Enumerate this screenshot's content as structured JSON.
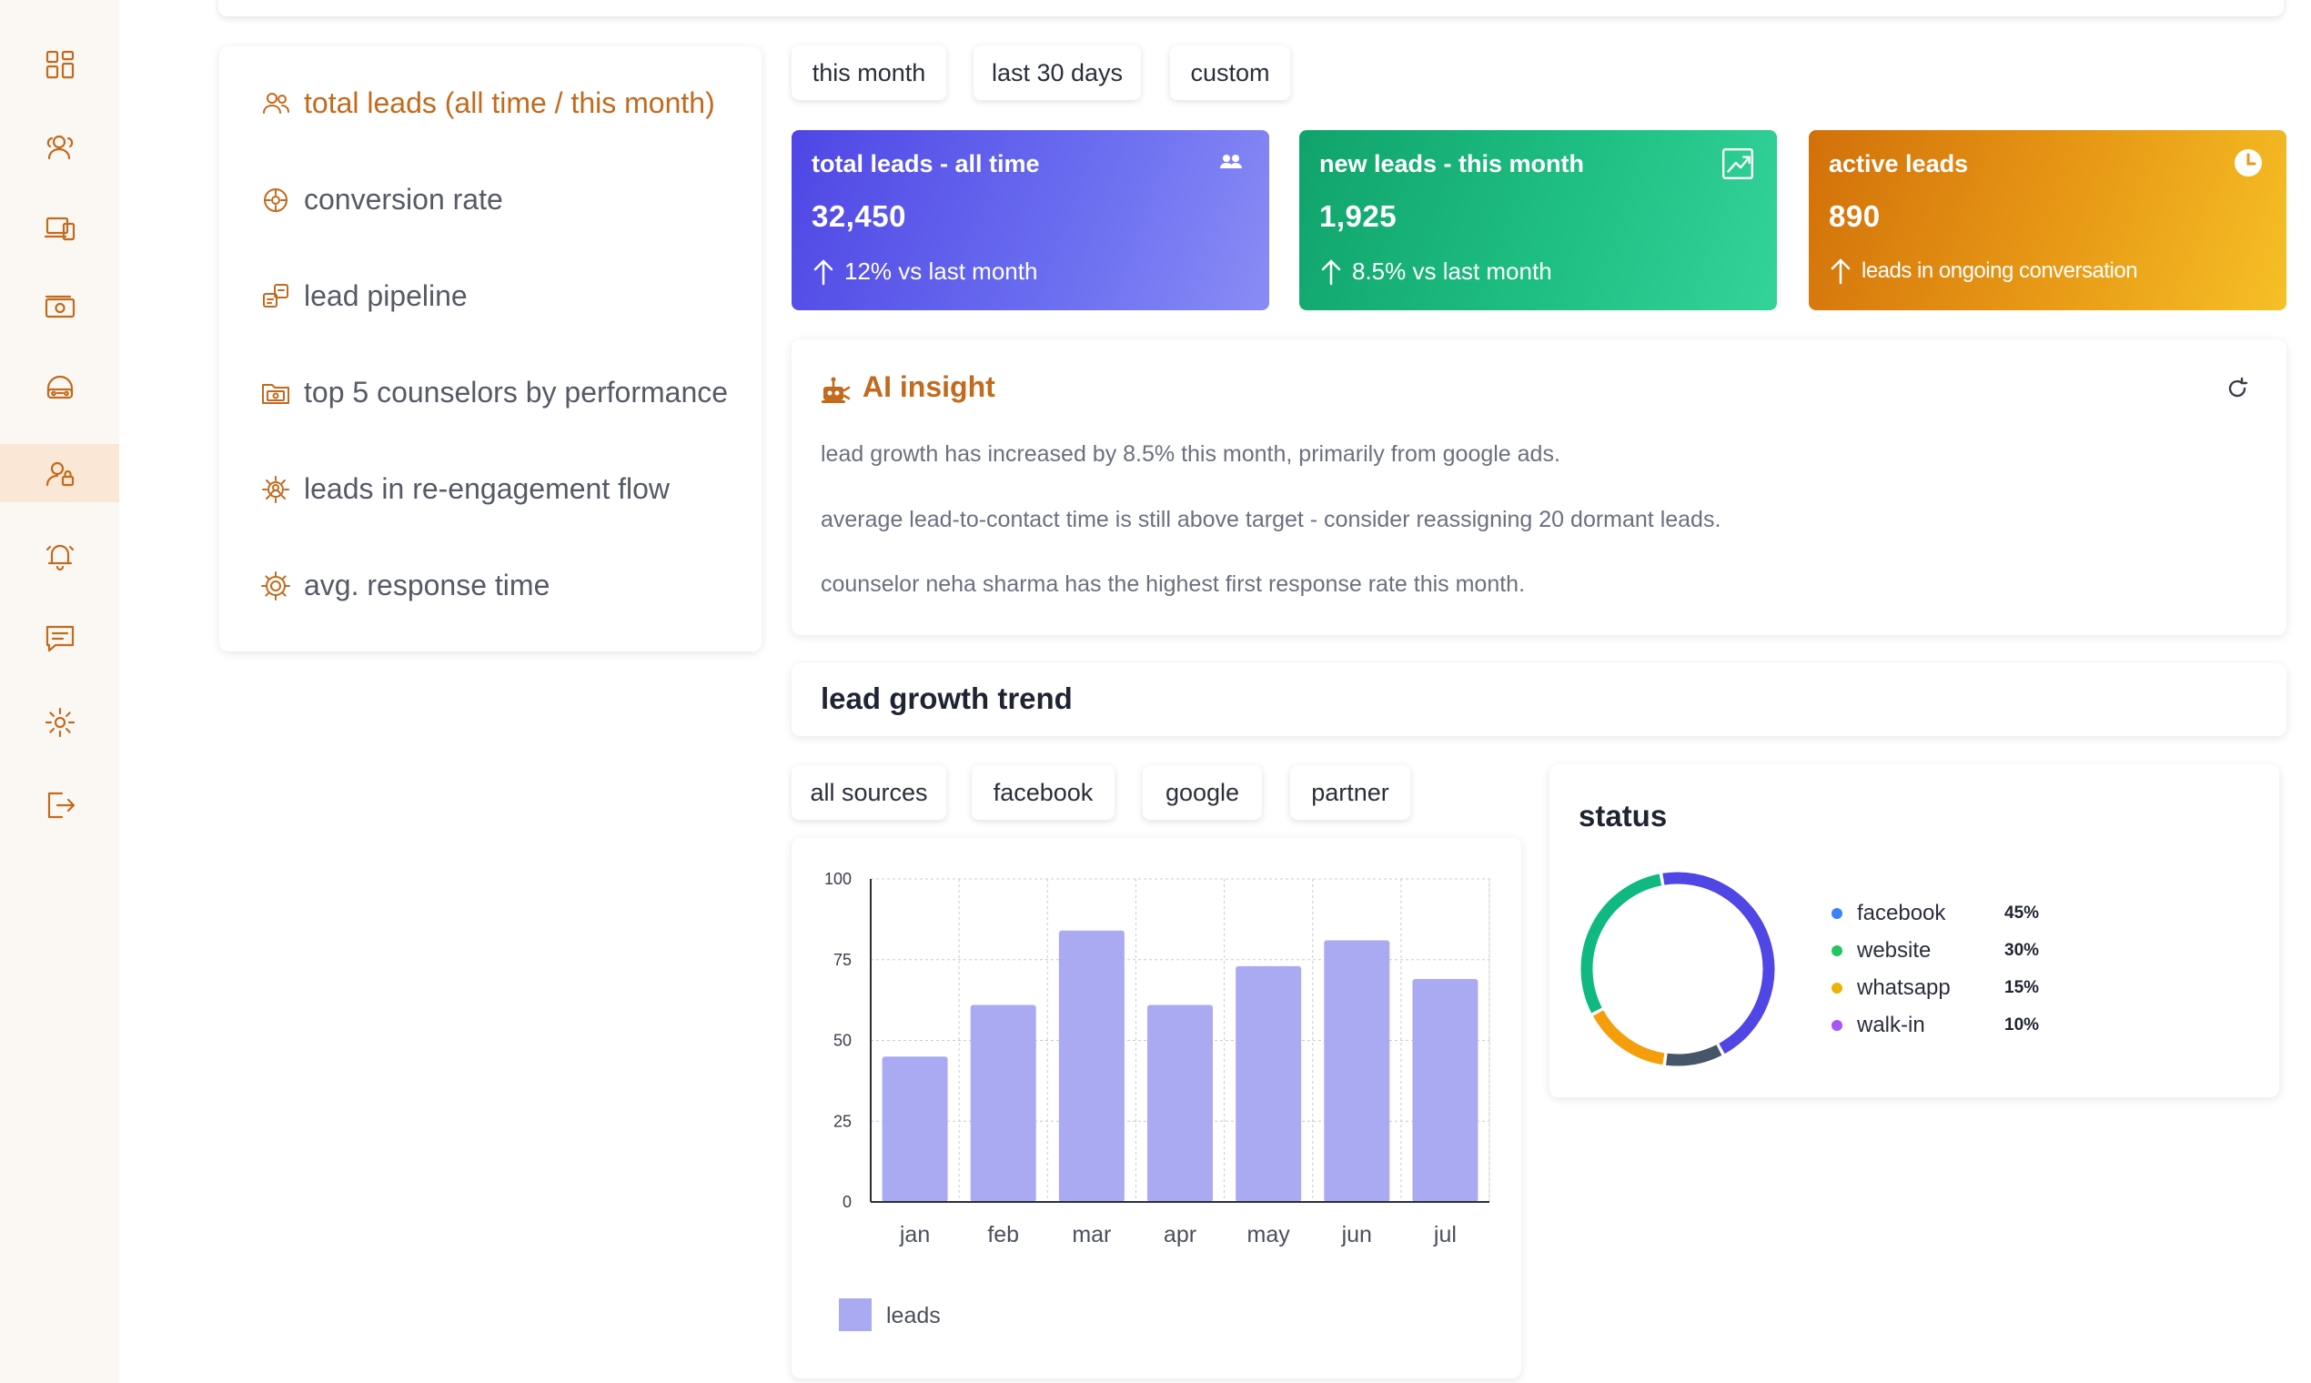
{
  "sidebar": {
    "items": [
      {
        "icon": "dashboard-grid-icon"
      },
      {
        "icon": "users-icon"
      },
      {
        "icon": "devices-icon"
      },
      {
        "icon": "money-icon"
      },
      {
        "icon": "car-icon"
      },
      {
        "icon": "user-settings-icon",
        "active": true
      },
      {
        "icon": "bell-icon"
      },
      {
        "icon": "message-icon"
      },
      {
        "icon": "gear-icon"
      },
      {
        "icon": "logout-icon"
      }
    ]
  },
  "metrics_menu": [
    {
      "label": "total leads (all time / this month)",
      "icon": "users-icon",
      "active": true
    },
    {
      "label": "conversion rate",
      "icon": "conversion-icon"
    },
    {
      "label": "lead pipeline",
      "icon": "pipeline-icon"
    },
    {
      "label": "top 5 counselors by performance",
      "icon": "folder-icon"
    },
    {
      "label": "leads in re-engagement flow",
      "icon": "cycle-icon"
    },
    {
      "label": "avg. response time",
      "icon": "gear-icon"
    }
  ],
  "period_filters": [
    "this month",
    "last 30 days",
    "custom"
  ],
  "stats": [
    {
      "title": "total leads - all time",
      "value": "32,450",
      "sub": "12% vs last month",
      "icon": "users-icon"
    },
    {
      "title": "new leads - this month",
      "value": "1,925",
      "sub": "8.5% vs last month",
      "icon": "trend-chart-icon"
    },
    {
      "title": "active leads",
      "value": "890",
      "sub": "leads in ongoing conversation",
      "icon": "clock-icon"
    }
  ],
  "insight": {
    "title": "AI insight",
    "lines": [
      "lead growth has increased by 8.5% this month, primarily from google ads.",
      "average lead-to-contact time is still above target - consider reassigning 20 dormant leads.",
      "counselor neha sharma has the highest first response rate this month."
    ]
  },
  "trend": {
    "title": "lead growth trend",
    "source_filters": [
      "all sources",
      "facebook",
      "google",
      "partner"
    ]
  },
  "chart_data": [
    {
      "type": "bar",
      "categories": [
        "jan",
        "feb",
        "mar",
        "apr",
        "may",
        "jun",
        "jul"
      ],
      "series": [
        {
          "name": "leads",
          "values": [
            45,
            61,
            84,
            61,
            73,
            81,
            69
          ]
        }
      ],
      "yticks": [
        0,
        25,
        50,
        75,
        100
      ],
      "ylim": [
        0,
        100
      ],
      "grid": true,
      "legend": "bottom-left",
      "colors": {
        "bar": "#a9aaf2"
      }
    },
    {
      "type": "pie",
      "title": "status",
      "slices": [
        {
          "label": "facebook",
          "value": 45,
          "pct": "45%",
          "color": "#4f46e5"
        },
        {
          "label": "website",
          "value": 30,
          "pct": "30%",
          "color": "#10b981"
        },
        {
          "label": "whatsapp",
          "value": 15,
          "pct": "15%",
          "color": "#f59e0b"
        },
        {
          "label": "walk-in",
          "value": 10,
          "pct": "10%",
          "color": "#475569"
        }
      ],
      "legend_dot_colors": [
        "#3b82f6",
        "#22c55e",
        "#eab308",
        "#a855f7"
      ],
      "legend": "right"
    }
  ],
  "colors": {
    "accent": "#c26a1d",
    "sidebar_bg": "#fbf8f4",
    "active_bg": "#fbe7d6"
  }
}
